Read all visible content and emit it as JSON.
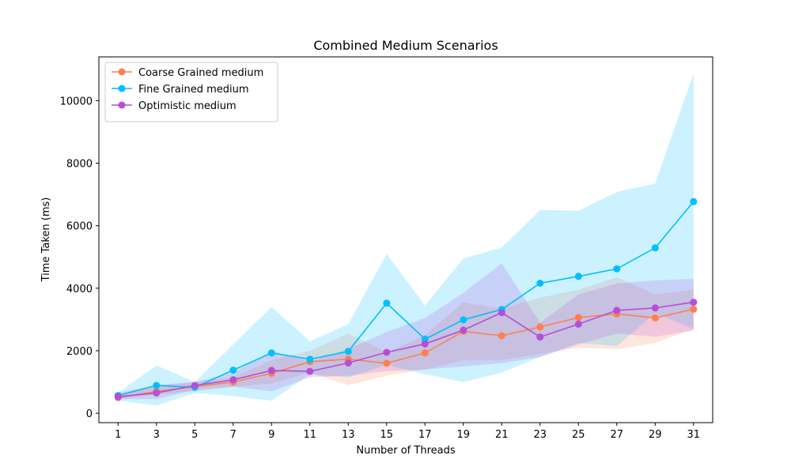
{
  "chart_data": {
    "type": "line",
    "title": "Combined Medium Scenarios",
    "xlabel": "Number of Threads",
    "ylabel": "Time Taken (ms)",
    "x": [
      1,
      3,
      5,
      7,
      9,
      11,
      13,
      15,
      17,
      19,
      21,
      23,
      25,
      27,
      29,
      31
    ],
    "xlim": [
      0,
      32
    ],
    "ylim": [
      -300,
      11400
    ],
    "yticks": [
      0,
      2000,
      4000,
      6000,
      8000,
      10000
    ],
    "legend_position": "upper-left",
    "series": [
      {
        "name": "Coarse Grained medium",
        "color": "#ff7f50",
        "values": [
          500,
          700,
          850,
          1000,
          1280,
          1650,
          1730,
          1600,
          1930,
          2620,
          2480,
          2760,
          3060,
          3180,
          3050,
          3330
        ],
        "lower": [
          450,
          600,
          700,
          850,
          950,
          1300,
          900,
          1200,
          1400,
          1700,
          1700,
          1900,
          2100,
          2050,
          2250,
          2700
        ],
        "upper": [
          600,
          900,
          1000,
          1150,
          1700,
          2000,
          2550,
          1950,
          2500,
          3550,
          3350,
          3700,
          3950,
          4350,
          3800,
          3950
        ]
      },
      {
        "name": "Fine Grained medium",
        "color": "#00bfff",
        "values": [
          570,
          890,
          830,
          1380,
          1930,
          1730,
          1980,
          3520,
          2370,
          2990,
          3320,
          4160,
          4380,
          4620,
          5290,
          6770
        ],
        "lower": [
          400,
          250,
          650,
          550,
          400,
          1250,
          1150,
          1550,
          1250,
          1000,
          1300,
          1800,
          2250,
          2150,
          3200,
          2700
        ],
        "upper": [
          650,
          1530,
          1000,
          2200,
          3400,
          2300,
          2850,
          5100,
          3450,
          4950,
          5300,
          6500,
          6480,
          7080,
          7350,
          10880
        ]
      },
      {
        "name": "Optimistic medium",
        "color": "#b44fd6",
        "values": [
          530,
          650,
          890,
          1070,
          1370,
          1340,
          1610,
          1950,
          2220,
          2660,
          3220,
          2440,
          2850,
          3290,
          3370,
          3550
        ],
        "lower": [
          450,
          450,
          750,
          850,
          700,
          1150,
          1200,
          1350,
          1400,
          1500,
          1600,
          1800,
          2200,
          2550,
          2450,
          2650
        ],
        "upper": [
          650,
          900,
          1000,
          1300,
          2000,
          1650,
          2050,
          2600,
          3050,
          3850,
          4800,
          2900,
          3800,
          4150,
          4250,
          4300
        ]
      }
    ]
  }
}
